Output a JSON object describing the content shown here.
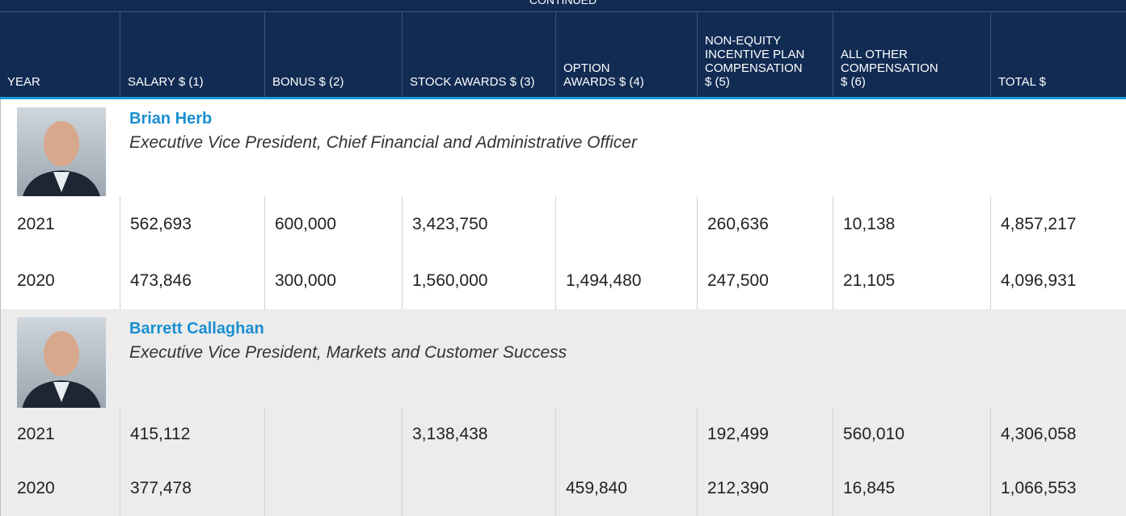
{
  "header": {
    "continued": "CONTINUED",
    "columns": [
      [
        "YEAR"
      ],
      [
        "SALARY $ (1)"
      ],
      [
        "BONUS $ (2)"
      ],
      [
        "STOCK AWARDS $ (3)"
      ],
      [
        "OPTION",
        "AWARDS $ (4)"
      ],
      [
        "NON-EQUITY",
        "INCENTIVE PLAN",
        "COMPENSATION",
        "$ (5)"
      ],
      [
        "ALL OTHER",
        "COMPENSATION",
        "$ (6)"
      ],
      [
        "TOTAL $"
      ]
    ]
  },
  "executives": [
    {
      "name": "Brian Herb",
      "title": "Executive Vice President, Chief Financial and Administrative Officer",
      "rows": [
        [
          "2021",
          "562,693",
          "600,000",
          "3,423,750",
          null,
          "260,636",
          "10,138",
          "4,857,217"
        ],
        [
          "2020",
          "473,846",
          "300,000",
          "1,560,000",
          "1,494,480",
          "247,500",
          "21,105",
          "4,096,931"
        ]
      ]
    },
    {
      "name": "Barrett Callaghan",
      "title": "Executive Vice President, Markets and Customer Success",
      "rows": [
        [
          "2021",
          "415,112",
          null,
          "3,138,438",
          null,
          "192,499",
          "560,010",
          "4,306,058"
        ],
        [
          "2020",
          "377,478",
          null,
          null,
          "459,840",
          "212,390",
          "16,845",
          "1,066,553"
        ]
      ]
    }
  ]
}
